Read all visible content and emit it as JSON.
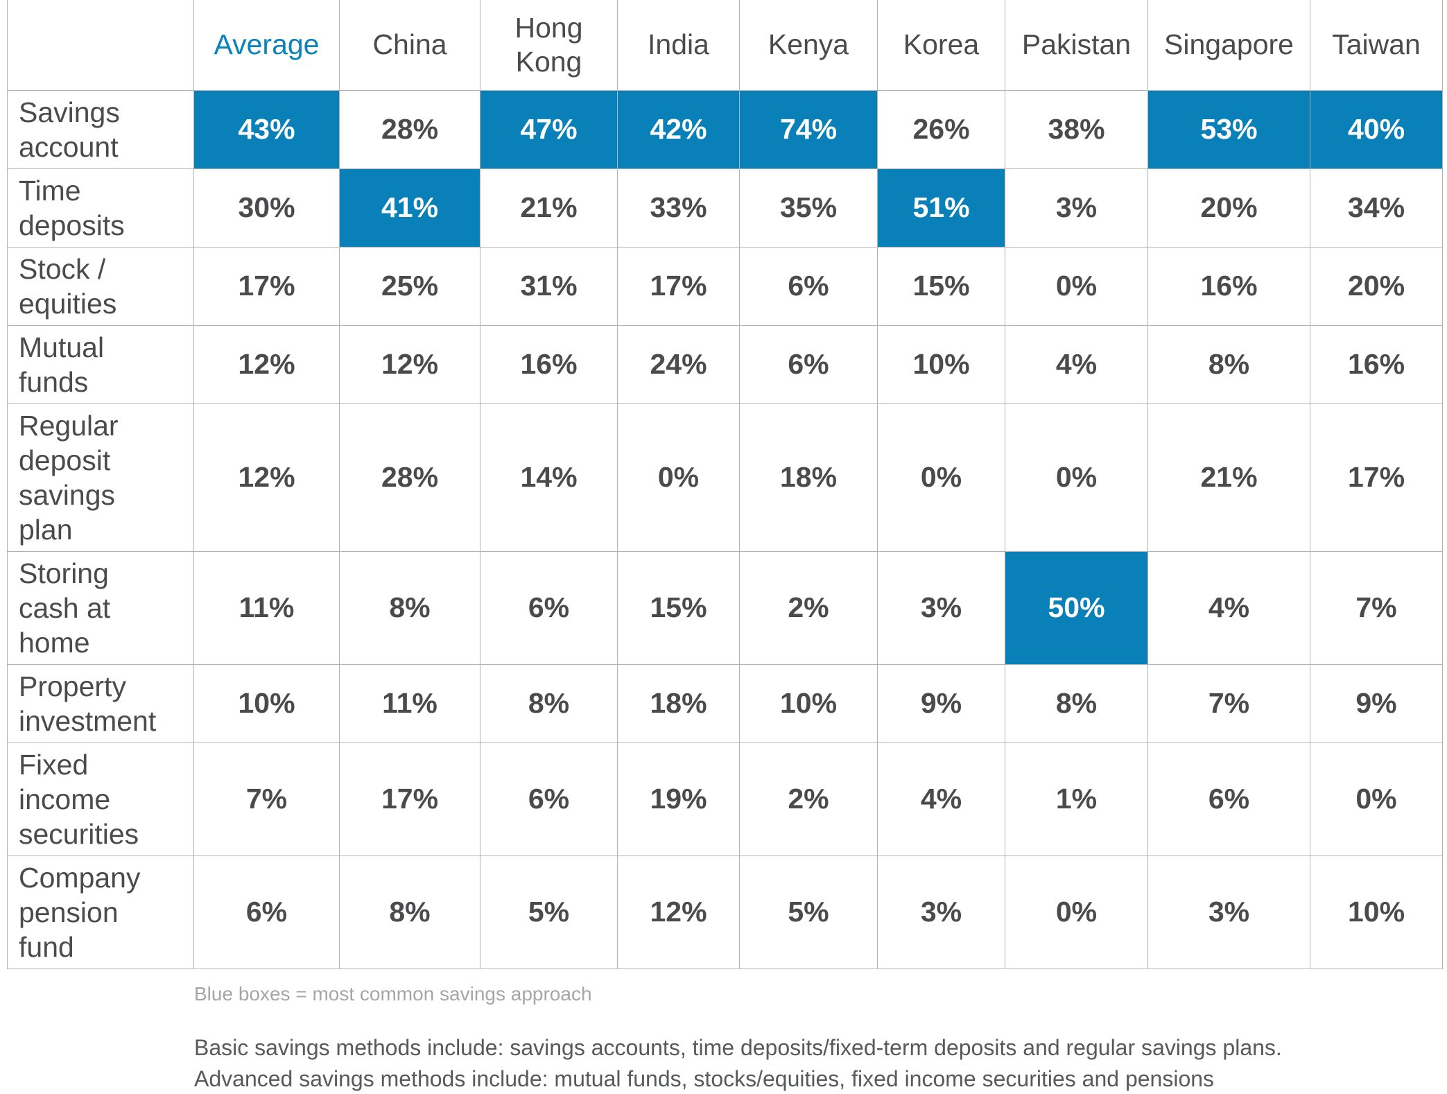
{
  "colors": {
    "highlight": "#0a80b8",
    "average_header": "#0a83ba",
    "text": "#4b4b4d",
    "grid": "#b3b3b3"
  },
  "table": {
    "corner": "",
    "columns": [
      "Average",
      "China",
      "Hong Kong",
      "India",
      "Kenya",
      "Korea",
      "Pakistan",
      "Singapore",
      "Taiwan"
    ],
    "column_lines": [
      [
        "Average"
      ],
      [
        "China"
      ],
      [
        "Hong",
        "Kong"
      ],
      [
        "India"
      ],
      [
        "Kenya"
      ],
      [
        "Korea"
      ],
      [
        "Pakistan"
      ],
      [
        "Singapore"
      ],
      [
        "Taiwan"
      ]
    ],
    "rows": [
      {
        "label": "Savings account",
        "label_lines": [
          "Savings",
          "account"
        ],
        "values": [
          "43%",
          "28%",
          "47%",
          "42%",
          "74%",
          "26%",
          "38%",
          "53%",
          "40%"
        ]
      },
      {
        "label": "Time deposits",
        "label_lines": [
          "Time",
          "deposits"
        ],
        "values": [
          "30%",
          "41%",
          "21%",
          "33%",
          "35%",
          "51%",
          "3%",
          "20%",
          "34%"
        ]
      },
      {
        "label": "Stock / equities",
        "label_lines": [
          "Stock /",
          "equities"
        ],
        "values": [
          "17%",
          "25%",
          "31%",
          "17%",
          "6%",
          "15%",
          "0%",
          "16%",
          "20%"
        ]
      },
      {
        "label": "Mutual funds",
        "label_lines": [
          "Mutual",
          "funds"
        ],
        "values": [
          "12%",
          "12%",
          "16%",
          "24%",
          "6%",
          "10%",
          "4%",
          "8%",
          "16%"
        ]
      },
      {
        "label": "Regular deposit savings plan",
        "label_lines": [
          "Regular",
          "deposit",
          "savings",
          "plan"
        ],
        "values": [
          "12%",
          "28%",
          "14%",
          "0%",
          "18%",
          "0%",
          "0%",
          "21%",
          "17%"
        ]
      },
      {
        "label": "Storing cash at home",
        "label_lines": [
          "Storing",
          "cash at",
          "home"
        ],
        "values": [
          "11%",
          "8%",
          "6%",
          "15%",
          "2%",
          "3%",
          "50%",
          "4%",
          "7%"
        ]
      },
      {
        "label": "Property investment",
        "label_lines": [
          "Property",
          "investment"
        ],
        "values": [
          "10%",
          "11%",
          "8%",
          "18%",
          "10%",
          "9%",
          "8%",
          "7%",
          "9%"
        ]
      },
      {
        "label": "Fixed income securities",
        "label_lines": [
          "Fixed",
          "income",
          "securities"
        ],
        "values": [
          "7%",
          "17%",
          "6%",
          "19%",
          "2%",
          "4%",
          "1%",
          "6%",
          "0%"
        ]
      },
      {
        "label": "Company pension fund",
        "label_lines": [
          "Company",
          "pension",
          "fund"
        ],
        "values": [
          "6%",
          "8%",
          "5%",
          "12%",
          "5%",
          "3%",
          "0%",
          "3%",
          "10%"
        ]
      }
    ],
    "highlighted": [
      {
        "row": "Savings account",
        "column": "Average"
      },
      {
        "row": "Savings account",
        "column": "Hong Kong"
      },
      {
        "row": "Savings account",
        "column": "India"
      },
      {
        "row": "Savings account",
        "column": "Kenya"
      },
      {
        "row": "Savings account",
        "column": "Singapore"
      },
      {
        "row": "Savings account",
        "column": "Taiwan"
      },
      {
        "row": "Time deposits",
        "column": "China"
      },
      {
        "row": "Time deposits",
        "column": "Korea"
      },
      {
        "row": "Storing cash at home",
        "column": "Pakistan"
      }
    ]
  },
  "notes": {
    "legend": "Blue boxes = most common savings approach",
    "basic": "Basic savings methods include: savings accounts, time deposits/fixed-term deposits and regular savings plans.",
    "advanced": "Advanced savings methods include: mutual funds, stocks/equities, fixed income securities and pensions"
  },
  "chart_data": {
    "type": "table",
    "title": "",
    "categories": [
      "Average",
      "China",
      "Hong Kong",
      "India",
      "Kenya",
      "Korea",
      "Pakistan",
      "Singapore",
      "Taiwan"
    ],
    "series": [
      {
        "name": "Savings account",
        "values": [
          43,
          28,
          47,
          42,
          74,
          26,
          38,
          53,
          40
        ]
      },
      {
        "name": "Time deposits",
        "values": [
          30,
          41,
          21,
          33,
          35,
          51,
          3,
          20,
          34
        ]
      },
      {
        "name": "Stock / equities",
        "values": [
          17,
          25,
          31,
          17,
          6,
          15,
          0,
          16,
          20
        ]
      },
      {
        "name": "Mutual funds",
        "values": [
          12,
          12,
          16,
          24,
          6,
          10,
          4,
          8,
          16
        ]
      },
      {
        "name": "Regular deposit savings plan",
        "values": [
          12,
          28,
          14,
          0,
          18,
          0,
          0,
          21,
          17
        ]
      },
      {
        "name": "Storing cash at home",
        "values": [
          11,
          8,
          6,
          15,
          2,
          3,
          50,
          4,
          7
        ]
      },
      {
        "name": "Property investment",
        "values": [
          10,
          11,
          8,
          18,
          10,
          9,
          8,
          7,
          9
        ]
      },
      {
        "name": "Fixed income securities",
        "values": [
          7,
          17,
          6,
          19,
          2,
          4,
          1,
          6,
          0
        ]
      },
      {
        "name": "Company pension fund",
        "values": [
          6,
          8,
          5,
          12,
          5,
          3,
          0,
          3,
          10
        ]
      }
    ],
    "unit": "%"
  }
}
